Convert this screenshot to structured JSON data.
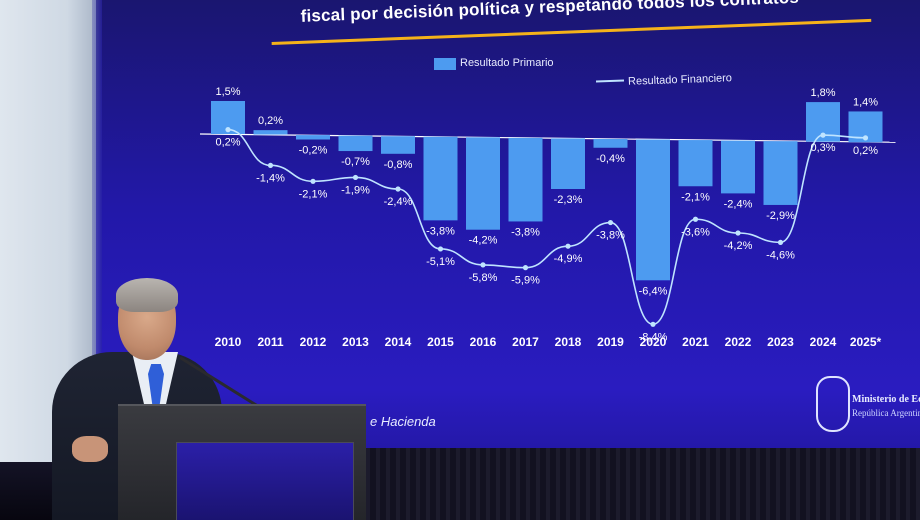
{
  "slide": {
    "title": "fiscal por decisión política y respetando todos los contratos",
    "footer_text": "e Hacienda",
    "ministry_line1": "Ministerio de Eco",
    "ministry_line2": "República Argentina",
    "accent_color": "#f5b21a",
    "bar_color": "#4d9bf0",
    "line_color": "#bfe4ff"
  },
  "chart_data": {
    "type": "bar",
    "categories": [
      "2010",
      "2011",
      "2012",
      "2013",
      "2014",
      "2015",
      "2016",
      "2017",
      "2018",
      "2019",
      "2020",
      "2021",
      "2022",
      "2023",
      "2024",
      "2025*"
    ],
    "series": [
      {
        "name": "Resultado Primario",
        "type": "bar",
        "values": [
          1.5,
          0.2,
          -0.2,
          -0.7,
          -0.8,
          -3.8,
          -4.2,
          -3.8,
          -2.3,
          -0.4,
          -6.4,
          -2.1,
          -2.4,
          -2.9,
          1.8,
          1.4
        ],
        "labels": [
          "1,5%",
          "0,2%",
          "-0,2%",
          "-0,7%",
          "-0,8%",
          "-3,8%",
          "-4,2%",
          "-3,8%",
          "-2,3%",
          "-0,4%",
          "-6,4%",
          "-2,1%",
          "-2,4%",
          "-2,9%",
          "1,8%",
          "1,4%"
        ]
      },
      {
        "name": "Resultado Financiero",
        "type": "line",
        "values": [
          0.2,
          -1.4,
          -2.1,
          -1.9,
          -2.4,
          -5.1,
          -5.8,
          -5.9,
          -4.9,
          -3.8,
          -8.4,
          -3.6,
          -4.2,
          -4.6,
          0.3,
          0.2
        ],
        "labels": [
          "0,2%",
          "-1,4%",
          "-2,1%",
          "-1,9%",
          "-2,4%",
          "-5,1%",
          "-5,8%",
          "-5,9%",
          "-4,9%",
          "-3,8%",
          "-8,4%",
          "-3,6%",
          "-4,2%",
          "-4,6%",
          "0,3%",
          "0,2%"
        ]
      }
    ],
    "grid": false,
    "legend": "top-right"
  }
}
